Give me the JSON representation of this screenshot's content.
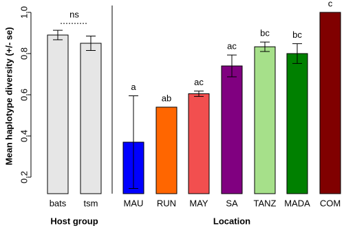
{
  "chart_data": {
    "type": "bar",
    "ylabel": "Mean haplotype diversity (+/- se)",
    "ylim": [
      0.12,
      1.0
    ],
    "yticks": [
      0.2,
      0.4,
      0.6,
      0.8,
      {
        "value": 1,
        "label": "1.0"
      }
    ],
    "groups": [
      {
        "label": "Host group",
        "annotation": "ns",
        "categories": [
          "bats",
          "tsm"
        ],
        "values": [
          0.89,
          0.85
        ],
        "errors": [
          0.023,
          0.035
        ],
        "colors": [
          "#e6e6e6",
          "#e6e6e6"
        ]
      },
      {
        "label": "Location",
        "categories": [
          "MAU",
          "RUN",
          "MAY",
          "SA",
          "TANZ",
          "MADA",
          "COM"
        ],
        "values": [
          0.37,
          0.54,
          0.605,
          0.74,
          0.833,
          0.8,
          1
        ],
        "errors": [
          0.225,
          0,
          0.013,
          0.053,
          0.023,
          0.048,
          0
        ],
        "letters": [
          "a",
          "ab",
          "ac",
          "ac",
          "bc",
          "bc",
          "c"
        ],
        "colors": [
          "#0000ff",
          "#ff6600",
          "#f24f4f",
          "#800080",
          "#a6e08a",
          "#008000",
          "#800000"
        ]
      }
    ]
  }
}
